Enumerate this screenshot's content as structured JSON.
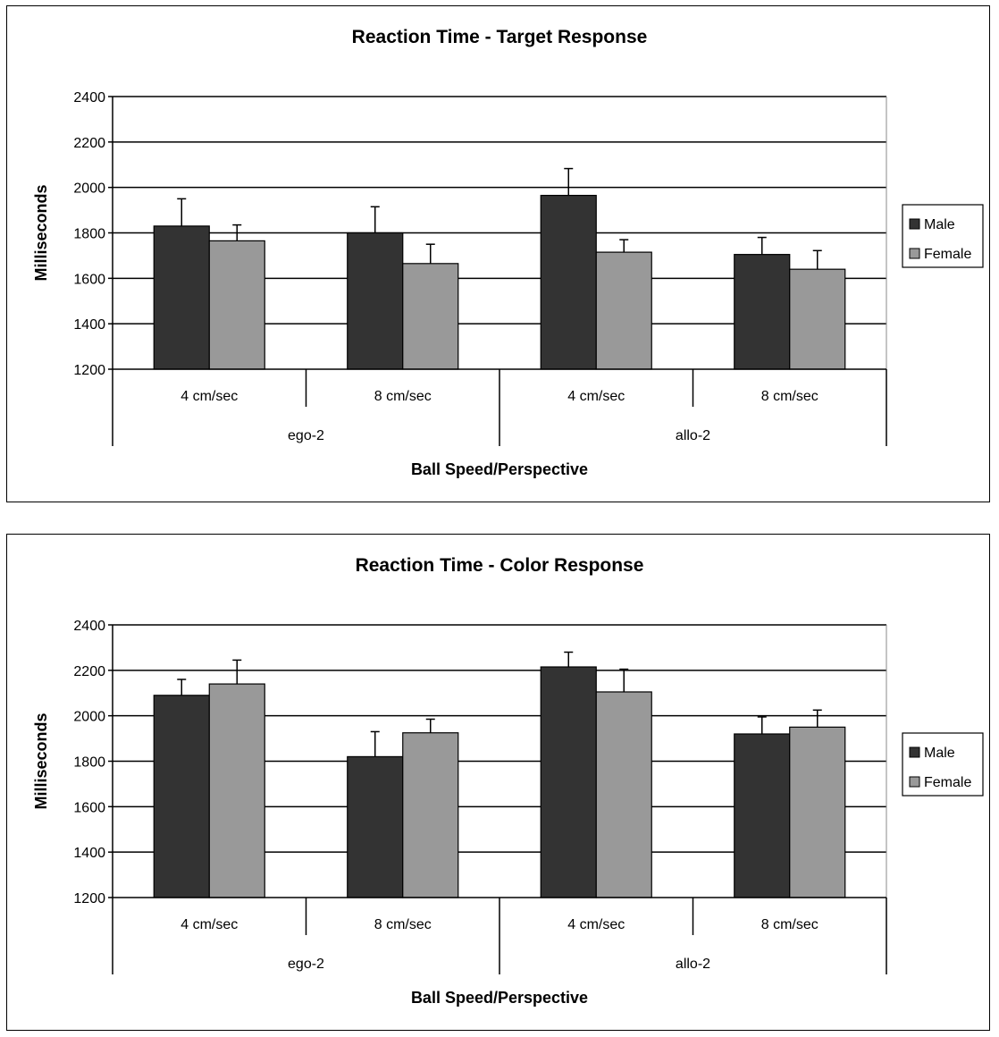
{
  "chart_data": [
    {
      "type": "bar",
      "title": "Reaction Time - Target Response",
      "xlabel": "Ball Speed/Perspective",
      "ylabel": "Milliseconds",
      "ylim": [
        1200,
        2400
      ],
      "yticks": [
        1200,
        1400,
        1600,
        1800,
        2000,
        2200,
        2400
      ],
      "grid": true,
      "legend_position": "right",
      "groups": [
        {
          "label": "ego-2",
          "categories": [
            "4 cm/sec",
            "8 cm/sec"
          ]
        },
        {
          "label": "allo-2",
          "categories": [
            "4 cm/sec",
            "8 cm/sec"
          ]
        }
      ],
      "categories": [
        "4 cm/sec",
        "8 cm/sec",
        "4 cm/sec",
        "8 cm/sec"
      ],
      "series": [
        {
          "name": "Male",
          "color": "#333333",
          "values": [
            1830,
            1800,
            1965,
            1705
          ],
          "error": [
            120,
            115,
            118,
            75
          ]
        },
        {
          "name": "Female",
          "color": "#999999",
          "values": [
            1765,
            1665,
            1715,
            1640
          ],
          "error": [
            70,
            85,
            55,
            82
          ]
        }
      ]
    },
    {
      "type": "bar",
      "title": "Reaction Time - Color Response",
      "xlabel": "Ball Speed/Perspective",
      "ylabel": "Milliseconds",
      "ylim": [
        1200,
        2400
      ],
      "yticks": [
        1200,
        1400,
        1600,
        1800,
        2000,
        2200,
        2400
      ],
      "grid": true,
      "legend_position": "right",
      "groups": [
        {
          "label": "ego-2",
          "categories": [
            "4 cm/sec",
            "8 cm/sec"
          ]
        },
        {
          "label": "allo-2",
          "categories": [
            "4 cm/sec",
            "8 cm/sec"
          ]
        }
      ],
      "categories": [
        "4 cm/sec",
        "8 cm/sec",
        "4 cm/sec",
        "8 cm/sec"
      ],
      "series": [
        {
          "name": "Male",
          "color": "#333333",
          "values": [
            2090,
            1820,
            2215,
            1920
          ],
          "error": [
            70,
            110,
            65,
            75
          ]
        },
        {
          "name": "Female",
          "color": "#999999",
          "values": [
            2140,
            1925,
            2105,
            1950
          ],
          "error": [
            105,
            60,
            100,
            75
          ]
        }
      ]
    }
  ]
}
